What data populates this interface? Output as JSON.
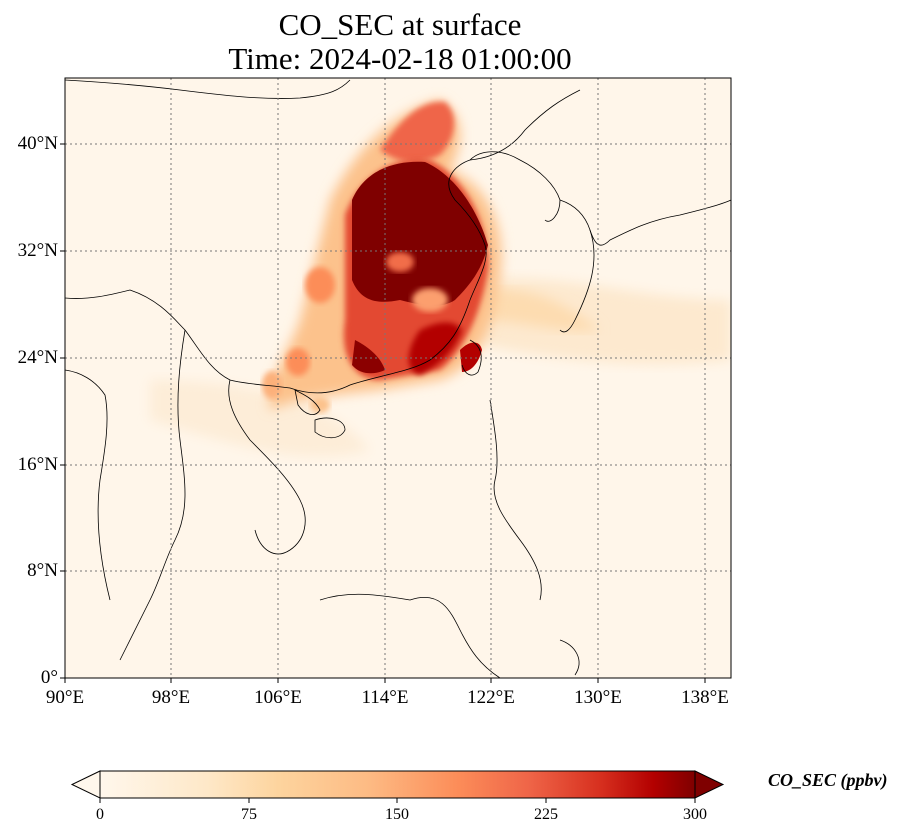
{
  "title_line1": "CO_SEC at surface",
  "title_line2": "Time: 2024-02-18 01:00:00",
  "map": {
    "lon_range": [
      90,
      140
    ],
    "lat_range": [
      0,
      45
    ],
    "lat_ticks": [
      {
        "value": 40,
        "label": "40°N"
      },
      {
        "value": 32,
        "label": "32°N"
      },
      {
        "value": 24,
        "label": "24°N"
      },
      {
        "value": 16,
        "label": "16°N"
      },
      {
        "value": 8,
        "label": "8°N"
      },
      {
        "value": 0,
        "label": "0°"
      }
    ],
    "lon_ticks": [
      {
        "value": 90,
        "label": "90°E"
      },
      {
        "value": 98,
        "label": "98°E"
      },
      {
        "value": 106,
        "label": "106°E"
      },
      {
        "value": 114,
        "label": "114°E"
      },
      {
        "value": 122,
        "label": "122°E"
      },
      {
        "value": 130,
        "label": "130°E"
      },
      {
        "value": 138,
        "label": "138°E"
      }
    ],
    "gridlines": "dotted"
  },
  "colorbar": {
    "label": "CO_SEC (ppbv)",
    "min": 0,
    "max": 300,
    "extend": "both",
    "colormap": "OrRd",
    "ticks": [
      "0",
      "75",
      "150",
      "225",
      "300"
    ]
  }
}
